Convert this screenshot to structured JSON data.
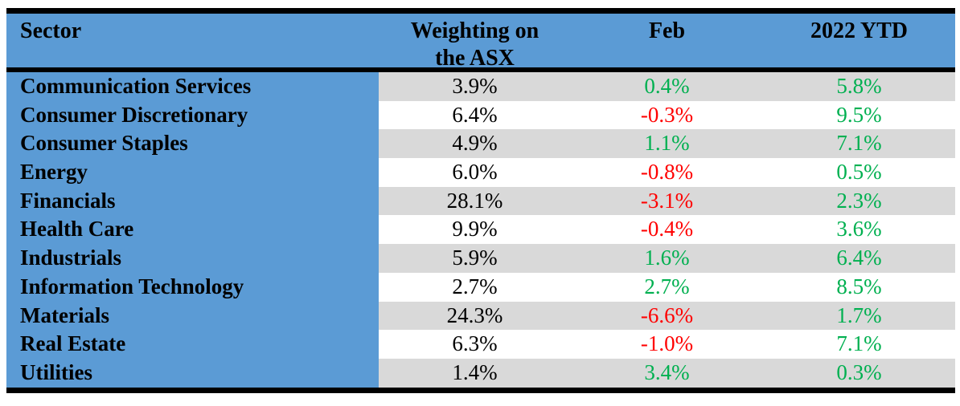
{
  "table": {
    "columns": [
      {
        "label": "Sector"
      },
      {
        "label": "Weighting on the ASX"
      },
      {
        "label": "Feb"
      },
      {
        "label": "2022 YTD"
      }
    ],
    "rows": [
      {
        "sector": "Communication Services",
        "weighting": "3.9%",
        "feb": "0.4%",
        "feb_tone": "positive",
        "ytd": "5.8%",
        "ytd_tone": "positive"
      },
      {
        "sector": "Consumer Discretionary",
        "weighting": "6.4%",
        "feb": "-0.3%",
        "feb_tone": "negative",
        "ytd": "9.5%",
        "ytd_tone": "positive"
      },
      {
        "sector": "Consumer Staples",
        "weighting": "4.9%",
        "feb": "1.1%",
        "feb_tone": "positive",
        "ytd": "7.1%",
        "ytd_tone": "positive"
      },
      {
        "sector": "Energy",
        "weighting": "6.0%",
        "feb": "-0.8%",
        "feb_tone": "negative",
        "ytd": "0.5%",
        "ytd_tone": "positive"
      },
      {
        "sector": "Financials",
        "weighting": "28.1%",
        "feb": "-3.1%",
        "feb_tone": "negative",
        "ytd": "2.3%",
        "ytd_tone": "positive"
      },
      {
        "sector": "Health Care",
        "weighting": "9.9%",
        "feb": "-0.4%",
        "feb_tone": "negative",
        "ytd": "3.6%",
        "ytd_tone": "positive"
      },
      {
        "sector": "Industrials",
        "weighting": "5.9%",
        "feb": "1.6%",
        "feb_tone": "positive",
        "ytd": "6.4%",
        "ytd_tone": "positive"
      },
      {
        "sector": "Information Technology",
        "weighting": "2.7%",
        "feb": "2.7%",
        "feb_tone": "positive",
        "ytd": "8.5%",
        "ytd_tone": "positive"
      },
      {
        "sector": "Materials",
        "weighting": "24.3%",
        "feb": "-6.6%",
        "feb_tone": "negative",
        "ytd": "1.7%",
        "ytd_tone": "positive"
      },
      {
        "sector": "Real Estate",
        "weighting": "6.3%",
        "feb": "-1.0%",
        "feb_tone": "negative",
        "ytd": "7.1%",
        "ytd_tone": "positive"
      },
      {
        "sector": "Utilities",
        "weighting": "1.4%",
        "feb": "3.4%",
        "feb_tone": "positive",
        "ytd": "0.3%",
        "ytd_tone": "positive"
      }
    ]
  },
  "colors": {
    "table_blue": "#5B9BD5",
    "row_shaded": "#D9D9D9",
    "row_plain": "#FFFFFF",
    "positive_green": "#00B050",
    "negative_red": "#FF0000",
    "border_black": "#000000"
  },
  "chart_data": {
    "type": "table",
    "title": "",
    "columns": [
      "Sector",
      "Weighting on the ASX",
      "Feb",
      "2022 YTD"
    ],
    "units": "percent",
    "value_color_rule": "negative values rendered red, positive values rendered green; weighting rendered black",
    "rows": [
      [
        "Communication Services",
        3.9,
        0.4,
        5.8
      ],
      [
        "Consumer Discretionary",
        6.4,
        -0.3,
        9.5
      ],
      [
        "Consumer Staples",
        4.9,
        1.1,
        7.1
      ],
      [
        "Energy",
        6.0,
        -0.8,
        0.5
      ],
      [
        "Financials",
        28.1,
        -3.1,
        2.3
      ],
      [
        "Health Care",
        9.9,
        -0.4,
        3.6
      ],
      [
        "Industrials",
        5.9,
        1.6,
        6.4
      ],
      [
        "Information Technology",
        2.7,
        2.7,
        8.5
      ],
      [
        "Materials",
        24.3,
        -6.6,
        1.7
      ],
      [
        "Real Estate",
        6.3,
        -1.0,
        7.1
      ],
      [
        "Utilities",
        1.4,
        3.4,
        0.3
      ]
    ]
  }
}
